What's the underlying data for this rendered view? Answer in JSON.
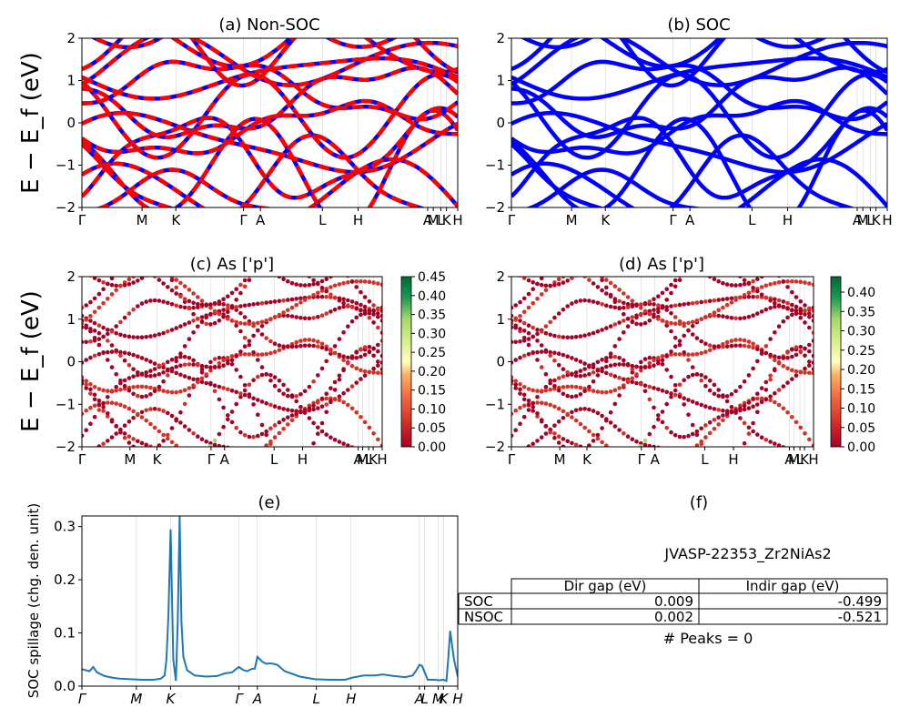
{
  "ylabel_band": "E − E_f (eV)",
  "colors": {
    "nonsoc_primary": "#ff0000",
    "nonsoc_secondary": "#0000ff",
    "soc_bands": "#0000ff",
    "spillage_line": "#1f77b4"
  },
  "kpath_labels": [
    "Γ",
    "M",
    "K",
    "Γ",
    "A",
    "L",
    "H",
    "A",
    "M",
    "L",
    "K",
    "H"
  ],
  "chart_data": [
    {
      "id": "a",
      "type": "line",
      "title": "(a) Non-SOC",
      "ylabel": "E − E_f (eV)",
      "ylim": [
        -2,
        2
      ],
      "yticks": [
        "−2",
        "−1",
        "0",
        "1",
        "2"
      ],
      "xticks": [
        "Γ",
        "M",
        "K",
        "Γ",
        "A",
        "L",
        "H",
        "A",
        "M",
        "L",
        "K",
        "H"
      ],
      "series": [
        {
          "values_desc": "band energies"
        }
      ]
    },
    {
      "id": "b",
      "type": "line",
      "title": "(b) SOC",
      "ylim": [
        -2,
        2
      ],
      "yticks": [
        "−2",
        "−1",
        "0",
        "1",
        "2"
      ],
      "xticks": [
        "Γ",
        "M",
        "K",
        "Γ",
        "A",
        "L",
        "H",
        "A",
        "M",
        "L",
        "K",
        "H"
      ]
    },
    {
      "id": "c",
      "type": "scatter",
      "title": "(c)  As ['p']",
      "ylim": [
        -2,
        2
      ],
      "ylabel": "E − E_f (eV)",
      "yticks": [
        "−2",
        "−1",
        "0",
        "1",
        "2"
      ],
      "xticks": [
        "Γ",
        "M",
        "K",
        "Γ",
        "A",
        "L",
        "H",
        "A",
        "M",
        "L",
        "K",
        "H"
      ],
      "colorbar": {
        "min": 0.0,
        "max": 0.45,
        "ticks": [
          "0.00",
          "0.05",
          "0.10",
          "0.15",
          "0.20",
          "0.25",
          "0.30",
          "0.35",
          "0.40",
          "0.45"
        ]
      }
    },
    {
      "id": "d",
      "type": "scatter",
      "title": "(d) As ['p']",
      "ylim": [
        -2,
        2
      ],
      "yticks": [
        "−2",
        "−1",
        "0",
        "1",
        "2"
      ],
      "xticks": [
        "Γ",
        "M",
        "K",
        "Γ",
        "A",
        "L",
        "H",
        "A",
        "M",
        "L",
        "K",
        "H"
      ],
      "colorbar": {
        "min": 0.0,
        "max": 0.44,
        "ticks": [
          "0.00",
          "0.05",
          "0.10",
          "0.15",
          "0.20",
          "0.25",
          "0.30",
          "0.35",
          "0.40"
        ]
      }
    },
    {
      "id": "e",
      "type": "line",
      "title": "(e)",
      "ylabel": "SOC spillage (chg. den. unit)",
      "ylim": [
        0,
        0.32
      ],
      "yticks": [
        "0.0",
        "0.1",
        "0.2",
        "0.3"
      ],
      "xticks": [
        "Γ",
        "M",
        "K",
        "Γ",
        "A",
        "L",
        "H",
        "A",
        "L",
        "M",
        "K",
        "H"
      ],
      "kpos": [
        0,
        0.145,
        0.236,
        0.418,
        0.467,
        0.624,
        0.716,
        0.898,
        0.912,
        0.948,
        0.962,
        1.0
      ],
      "x": [
        0,
        0.02,
        0.03,
        0.04,
        0.06,
        0.08,
        0.1,
        0.13,
        0.16,
        0.19,
        0.21,
        0.22,
        0.225,
        0.23,
        0.236,
        0.243,
        0.25,
        0.255,
        0.26,
        0.265,
        0.27,
        0.28,
        0.3,
        0.33,
        0.36,
        0.38,
        0.4,
        0.41,
        0.418,
        0.43,
        0.44,
        0.45,
        0.46,
        0.467,
        0.48,
        0.49,
        0.5,
        0.51,
        0.52,
        0.54,
        0.58,
        0.62,
        0.66,
        0.7,
        0.72,
        0.75,
        0.78,
        0.8,
        0.83,
        0.86,
        0.88,
        0.89,
        0.898,
        0.905,
        0.92,
        0.94,
        0.95,
        0.962,
        0.97,
        0.975,
        0.98,
        0.99,
        1.0
      ],
      "y": [
        0.032,
        0.028,
        0.036,
        0.026,
        0.019,
        0.016,
        0.014,
        0.013,
        0.012,
        0.012,
        0.014,
        0.02,
        0.05,
        0.13,
        0.295,
        0.05,
        0.01,
        0.12,
        0.32,
        0.12,
        0.055,
        0.03,
        0.02,
        0.018,
        0.019,
        0.024,
        0.026,
        0.032,
        0.036,
        0.03,
        0.028,
        0.032,
        0.033,
        0.055,
        0.046,
        0.042,
        0.043,
        0.042,
        0.04,
        0.028,
        0.018,
        0.013,
        0.012,
        0.012,
        0.016,
        0.02,
        0.02,
        0.022,
        0.019,
        0.017,
        0.02,
        0.03,
        0.04,
        0.038,
        0.012,
        0.012,
        0.011,
        0.012,
        0.01,
        0.055,
        0.104,
        0.05,
        0.018
      ]
    }
  ],
  "panel_f": {
    "title": "(f)",
    "material": "JVASP-22353_Zr2NiAs2",
    "table": {
      "headers": [
        "Dir gap (eV)",
        "Indir gap (eV)"
      ],
      "rows": [
        {
          "label": "SOC",
          "dir": "0.009",
          "indir": "-0.499"
        },
        {
          "label": "NSOC",
          "dir": "0.002",
          "indir": "-0.521"
        }
      ]
    },
    "peaks": "# Peaks = 0"
  }
}
